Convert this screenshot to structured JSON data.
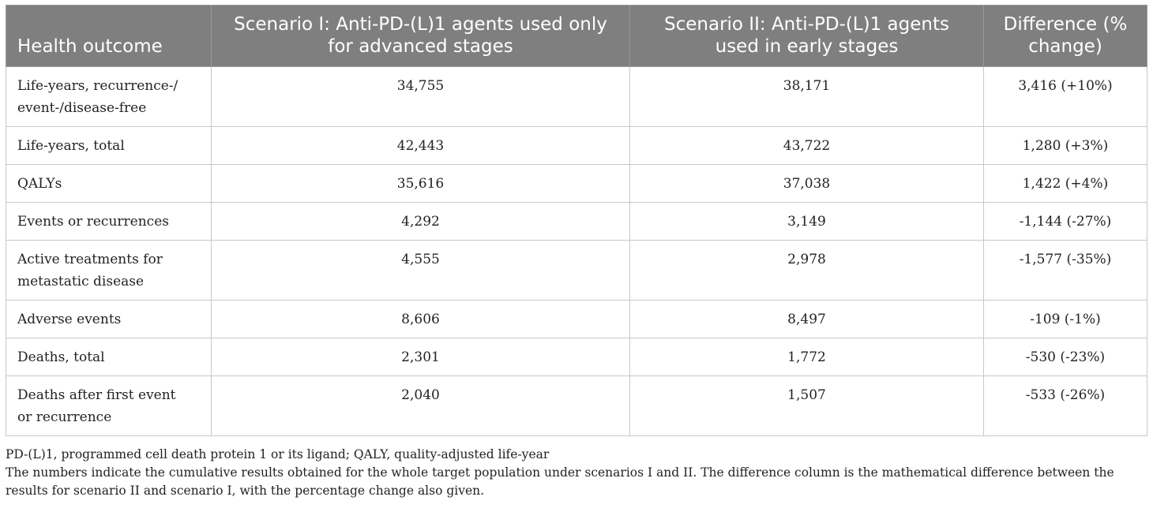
{
  "table": {
    "headers": [
      "Health outcome",
      "Scenario I: Anti-PD-(L)1 agents used only for advanced stages",
      "Scenario II: Anti-PD-(L)1 agents used in early stages",
      "Difference (% change)"
    ],
    "rows": [
      {
        "outcome": "Life-years, recurrence-/ event-/disease-free",
        "s1": "34,755",
        "s2": "38,171",
        "diff": "3,416 (+10%)"
      },
      {
        "outcome": "Life-years, total",
        "s1": "42,443",
        "s2": "43,722",
        "diff": "1,280 (+3%)"
      },
      {
        "outcome": "QALYs",
        "s1": "35,616",
        "s2": "37,038",
        "diff": "1,422 (+4%)"
      },
      {
        "outcome": "Events or recurrences",
        "s1": "4,292",
        "s2": "3,149",
        "diff": "-1,144 (-27%)"
      },
      {
        "outcome": "Active treatments for metastatic disease",
        "s1": "4,555",
        "s2": "2,978",
        "diff": "-1,577 (-35%)"
      },
      {
        "outcome": "Adverse events",
        "s1": "8,606",
        "s2": "8,497",
        "diff": "-109 (-1%)"
      },
      {
        "outcome": "Deaths, total",
        "s1": "2,301",
        "s2": "1,772",
        "diff": "-530 (-23%)"
      },
      {
        "outcome": "Deaths after first event or recurrence",
        "s1": "2,040",
        "s2": "1,507",
        "diff": "-533 (-26%)"
      }
    ]
  },
  "footnotes": {
    "abbreviations": "PD-(L)1, programmed cell death protein 1 or its ligand; QALY, quality-adjusted life-year",
    "note": "The numbers indicate the cumulative results obtained for the whole target population under scenarios I and II. The difference column is the mathematical difference between the results for scenario II and scenario I, with the percentage change also given."
  }
}
